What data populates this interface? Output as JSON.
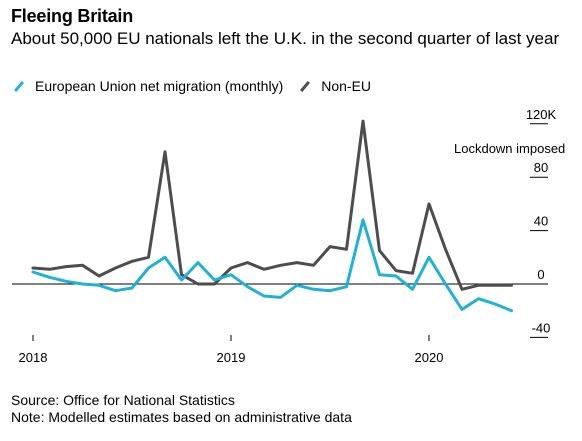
{
  "header": {
    "title": "Fleeing Britain",
    "subtitle": "About 50,000 EU nationals left the U.K. in the second quarter of last year"
  },
  "footer": {
    "source": "Source: Office for National Statistics",
    "note": "Note: Modelled estimates based on administrative data"
  },
  "chart_data": {
    "type": "line",
    "title": "Fleeing Britain",
    "subtitle": "About 50,000 EU nationals left the U.K. in the second quarter of last year",
    "x": [
      "2018-01",
      "2018-02",
      "2018-03",
      "2018-04",
      "2018-05",
      "2018-06",
      "2018-07",
      "2018-08",
      "2018-09",
      "2018-10",
      "2018-11",
      "2018-12",
      "2019-01",
      "2019-02",
      "2019-03",
      "2019-04",
      "2019-05",
      "2019-06",
      "2019-07",
      "2019-08",
      "2019-09",
      "2019-10",
      "2019-11",
      "2019-12",
      "2020-01",
      "2020-02",
      "2020-03",
      "2020-04",
      "2020-05",
      "2020-06"
    ],
    "x_tick_labels": [
      "2018",
      "2019",
      "2020"
    ],
    "y_tick_labels": [
      "120K",
      "80",
      "40",
      "0",
      "-40"
    ],
    "ylim": [
      -40,
      120
    ],
    "y_axis_position": "right",
    "grid": false,
    "legend_position": "top-left",
    "series": [
      {
        "name": "European Union net migration (monthly)",
        "color": "#1fb1d9",
        "values": [
          9,
          5,
          2,
          0,
          -1,
          -5,
          -3,
          12,
          20,
          3,
          16,
          3,
          7,
          -2,
          -9,
          -10,
          -1,
          -4,
          -5,
          -2,
          48,
          7,
          6,
          -4,
          20,
          0,
          -19,
          -11,
          -15,
          -20
        ]
      },
      {
        "name": "Non-EU",
        "color": "#4d4d4d",
        "values": [
          12,
          11,
          13,
          14,
          6,
          12,
          17,
          20,
          99,
          7,
          0,
          0,
          12,
          16,
          11,
          14,
          16,
          14,
          28,
          26,
          122,
          25,
          10,
          8,
          60,
          26,
          -4,
          -1,
          -1,
          -1
        ]
      }
    ],
    "annotations": [
      "Lockdown imposed"
    ],
    "ylabel": "",
    "xlabel": ""
  }
}
